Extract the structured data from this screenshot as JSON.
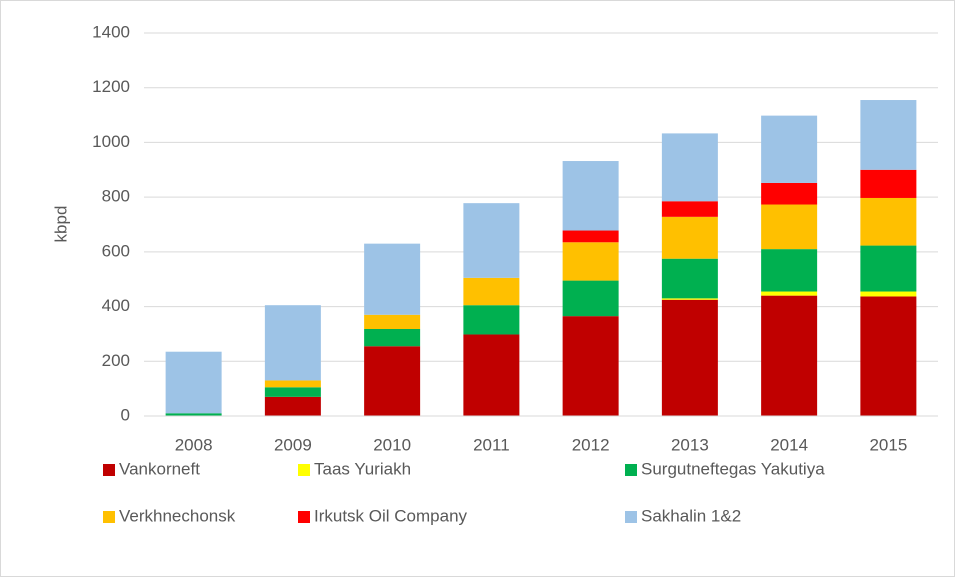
{
  "chart_data": {
    "type": "stacked_bar",
    "y_label": "kbpd",
    "categories": [
      "2008",
      "2009",
      "2010",
      "2011",
      "2012",
      "2013",
      "2014",
      "2015"
    ],
    "series": [
      {
        "name": "Vankorneft",
        "color": "#c00000",
        "values": [
          0,
          70,
          255,
          298,
          365,
          425,
          440,
          437
        ]
      },
      {
        "name": "Taas Yuriakh",
        "color": "#ffff00",
        "values": [
          0,
          0,
          0,
          0,
          0,
          5,
          15,
          18
        ]
      },
      {
        "name": "Surgutneftegas Yakutiya",
        "color": "#00b050",
        "values": [
          10,
          35,
          63,
          107,
          130,
          145,
          155,
          168
        ]
      },
      {
        "name": "Verkhnechonsk",
        "color": "#ffc000",
        "values": [
          0,
          25,
          52,
          100,
          140,
          153,
          163,
          174
        ]
      },
      {
        "name": "Irkutsk Oil Company",
        "color": "#ff0000",
        "values": [
          0,
          0,
          0,
          0,
          43,
          57,
          79,
          103
        ]
      },
      {
        "name": "Sakhalin 1&2",
        "color": "#9dc3e6",
        "values": [
          225,
          275,
          260,
          273,
          254,
          248,
          246,
          255
        ]
      }
    ],
    "ylim": [
      0,
      1400
    ],
    "yticks": [
      0,
      200,
      400,
      600,
      800,
      1000,
      1200,
      1400
    ],
    "grid": true,
    "legend": "bottom"
  }
}
